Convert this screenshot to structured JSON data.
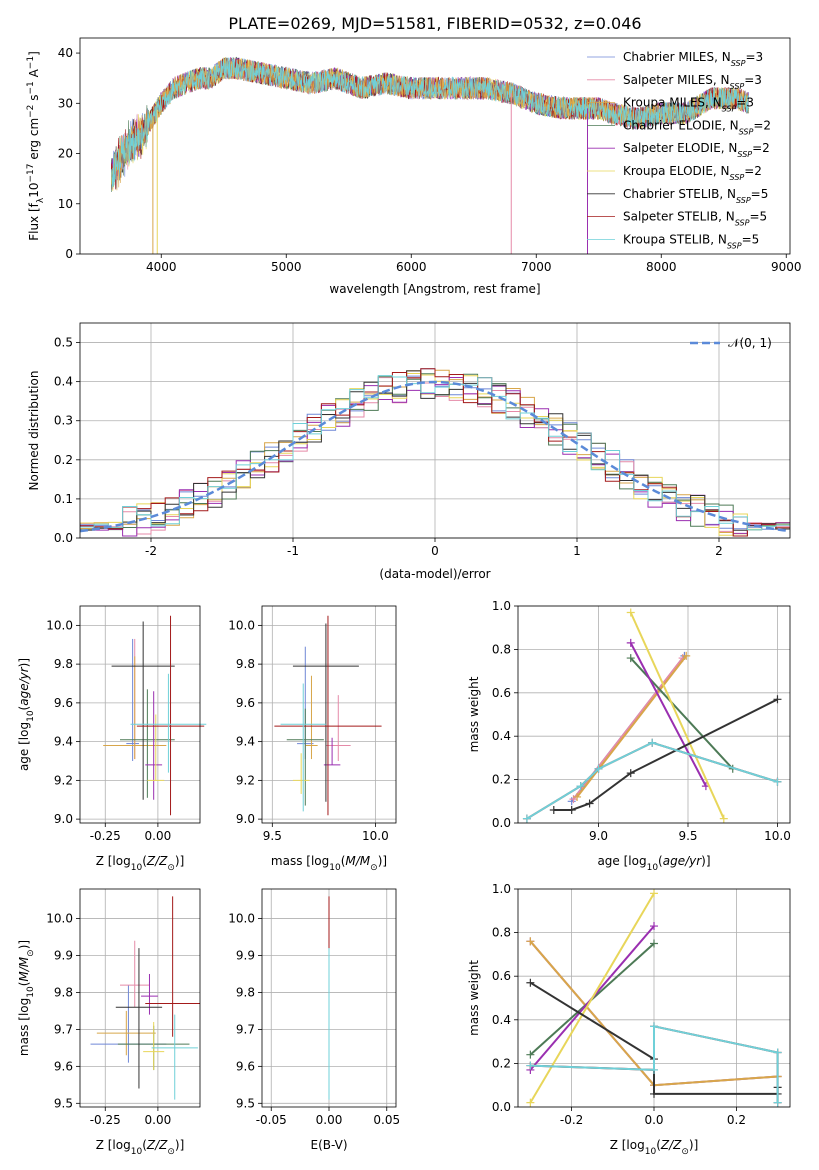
{
  "title": "PLATE=0269, MJD=51581, FIBERID=0532, z=0.046",
  "colors": [
    "#6f87d6",
    "#e58aa8",
    "#d8a64a",
    "#4d7a56",
    "#9a2fb0",
    "#e8d65a",
    "#333333",
    "#a31a1a",
    "#6fd0d8"
  ],
  "chart_data": [
    {
      "id": "spectrum",
      "type": "line",
      "xlabel": "wavelength [Angstrom, rest frame]",
      "ylabel": "Flux [f_λ10^-17 erg cm^-2 s^-1 A^-1]",
      "xlim": [
        3350,
        9030
      ],
      "ylim": [
        0,
        43
      ],
      "xticks": [
        4000,
        5000,
        6000,
        7000,
        8000,
        9000
      ],
      "yticks": [
        0,
        10,
        20,
        30,
        40
      ],
      "grid": false,
      "legend": "top-right",
      "continuum": {
        "x": [
          3600,
          3650,
          3700,
          3750,
          3800,
          3850,
          3900,
          3950,
          4000,
          4100,
          4200,
          4300,
          4400,
          4500,
          4600,
          4800,
          5000,
          5200,
          5400,
          5600,
          5800,
          6000,
          6200,
          6400,
          6600,
          6800,
          7000,
          7200,
          7400,
          7500,
          7600,
          7800,
          8000,
          8200,
          8400,
          8600,
          8700
        ],
        "y": [
          15,
          18,
          20,
          22,
          23,
          24,
          26,
          28,
          30,
          33,
          34,
          35,
          35,
          37,
          37,
          36,
          35,
          34,
          35,
          33,
          34,
          33,
          33,
          33,
          33,
          32,
          30,
          29,
          29,
          29,
          28,
          27,
          28,
          28,
          31,
          31,
          30
        ]
      },
      "dips": [
        {
          "x": 3933,
          "y": 0
        },
        {
          "x": 3968,
          "y": 0
        },
        {
          "x": 6800,
          "y": 0
        },
        {
          "x": 7410,
          "y": 0
        }
      ],
      "series": [
        {
          "label_base": "Chabrier MILES, N",
          "label_sub": "SSP",
          "label_tail": "=3"
        },
        {
          "label_base": "Salpeter MILES, N",
          "label_sub": "SSP",
          "label_tail": "=3"
        },
        {
          "label_base": "Kroupa MILES, N",
          "label_sub": "SSP",
          "label_tail": "=3"
        },
        {
          "label_base": "Chabrier ELODIE, N",
          "label_sub": "SSP",
          "label_tail": "=2"
        },
        {
          "label_base": "Salpeter ELODIE, N",
          "label_sub": "SSP",
          "label_tail": "=2"
        },
        {
          "label_base": "Kroupa ELODIE, N",
          "label_sub": "SSP",
          "label_tail": "=2"
        },
        {
          "label_base": "Chabrier STELIB, N",
          "label_sub": "SSP",
          "label_tail": "=5"
        },
        {
          "label_base": "Salpeter STELIB, N",
          "label_sub": "SSP",
          "label_tail": "=5"
        },
        {
          "label_base": "Kroupa STELIB, N",
          "label_sub": "SSP",
          "label_tail": "=5"
        }
      ]
    },
    {
      "id": "residuals",
      "type": "line",
      "xlabel": "(data-model)/error",
      "ylabel": "Normed distribution",
      "xlim": [
        -2.5,
        2.5
      ],
      "ylim": [
        0,
        0.55
      ],
      "xticks": [
        -2,
        -1,
        0,
        1,
        2
      ],
      "yticks": [
        0.0,
        0.1,
        0.2,
        0.3,
        0.4,
        0.5
      ],
      "grid": true,
      "legend": "top-right",
      "gaussian_label": "𝒩(0, 1)",
      "bin_width": 0.1
    },
    {
      "id": "z_age",
      "type": "scatter",
      "xlabel": "Z [log10(Z/Z⊙)]",
      "ylabel": "age [log10(age/yr)]",
      "xlim": [
        -0.37,
        0.2
      ],
      "ylim": [
        8.98,
        10.1
      ],
      "xticks": [
        -0.25,
        0.0
      ],
      "yticks": [
        9.0,
        9.2,
        9.4,
        9.6,
        9.8,
        10.0
      ],
      "grid": true,
      "points": [
        {
          "x": -0.12,
          "y": 9.39,
          "xerr": 0.03,
          "yerr": 0.54,
          "ylo": 0.09
        },
        {
          "x": -0.11,
          "y": 9.38,
          "xerr": 0.13,
          "yerr": 0.55,
          "ylo": 0.07
        },
        {
          "x": -0.11,
          "y": 9.38,
          "xerr": 0.15,
          "yerr": 0.46,
          "ylo": 0.07
        },
        {
          "x": -0.05,
          "y": 9.41,
          "xerr": 0.13,
          "yerr": 0.26,
          "ylo": 0.3
        },
        {
          "x": -0.02,
          "y": 9.28,
          "xerr": 0.04,
          "yerr": 0.38,
          "ylo": 0.18
        },
        {
          "x": -0.01,
          "y": 9.2,
          "xerr": 0.04,
          "yerr": 0.34,
          "ylo": 0.0
        },
        {
          "x": -0.07,
          "y": 9.79,
          "xerr": 0.15,
          "yerr": 0.23,
          "ylo": 0.69
        },
        {
          "x": 0.06,
          "y": 9.48,
          "xerr": 0.16,
          "yerr": 0.57,
          "ylo": 0.46
        },
        {
          "x": 0.05,
          "y": 9.49,
          "xerr": 0.18,
          "yerr": 0.26,
          "ylo": 0.25
        }
      ]
    },
    {
      "id": "mass_age",
      "type": "scatter",
      "xlabel": "mass [log10(M/M⊙)]",
      "ylabel": "",
      "xlim": [
        9.45,
        10.1
      ],
      "ylim": [
        8.98,
        10.1
      ],
      "xticks": [
        9.5,
        10.0
      ],
      "yticks": [
        9.0,
        9.2,
        9.4,
        9.6,
        9.8,
        10.0
      ],
      "grid": true,
      "points": [
        {
          "x": 9.66,
          "y": 9.39,
          "xerr": 0.04,
          "yerr": 0.5,
          "ylo": 0.08
        },
        {
          "x": 9.82,
          "y": 9.38,
          "xerr": 0.06,
          "yerr": 0.26,
          "ylo": 0.08
        },
        {
          "x": 9.69,
          "y": 9.38,
          "xerr": 0.03,
          "yerr": 0.36,
          "ylo": 0.07
        },
        {
          "x": 9.66,
          "y": 9.41,
          "xerr": 0.09,
          "yerr": 0.16,
          "ylo": 0.34
        },
        {
          "x": 9.79,
          "y": 9.28,
          "xerr": 0.04,
          "yerr": 0.14,
          "ylo": 0.0
        },
        {
          "x": 9.64,
          "y": 9.2,
          "xerr": 0.04,
          "yerr": 0.14,
          "ylo": 0.07
        },
        {
          "x": 9.76,
          "y": 9.79,
          "xerr": 0.16,
          "yerr": 0.22,
          "ylo": 0.7
        },
        {
          "x": 9.77,
          "y": 9.48,
          "xerr": 0.26,
          "yerr": 0.57,
          "ylo": 0.46
        },
        {
          "x": 9.65,
          "y": 9.49,
          "xerr": 0.11,
          "yerr": 0.21,
          "ylo": 0.45
        }
      ]
    },
    {
      "id": "age_weight",
      "type": "line",
      "xlabel": "age [log10(age/yr)]",
      "ylabel": "mass weight",
      "xlim": [
        8.55,
        10.07
      ],
      "ylim": [
        0,
        1.0
      ],
      "xticks": [
        9.0,
        9.5,
        10.0
      ],
      "yticks": [
        0.0,
        0.2,
        0.4,
        0.6,
        0.8,
        1.0
      ],
      "grid": true,
      "series": [
        {
          "x": [
            8.85,
            9.48
          ],
          "y": [
            0.1,
            0.77
          ]
        },
        {
          "x": [
            8.86,
            9.47
          ],
          "y": [
            0.11,
            0.76
          ]
        },
        {
          "x": [
            8.88,
            9.49
          ],
          "y": [
            0.12,
            0.77
          ]
        },
        {
          "x": [
            9.18,
            9.75
          ],
          "y": [
            0.76,
            0.25
          ]
        },
        {
          "x": [
            9.18,
            9.6
          ],
          "y": [
            0.83,
            0.17
          ]
        },
        {
          "x": [
            9.18,
            9.7
          ],
          "y": [
            0.97,
            0.02
          ]
        },
        {
          "x": [
            8.75,
            8.85,
            8.95,
            9.18,
            10.0
          ],
          "y": [
            0.06,
            0.06,
            0.09,
            0.23,
            0.57
          ]
        },
        {
          "x": [
            8.6,
            8.9,
            9.0,
            9.3,
            10.0
          ],
          "y": [
            0.02,
            0.17,
            0.25,
            0.37,
            0.19
          ]
        },
        {
          "x": [
            8.6,
            8.9,
            9.0,
            9.3,
            10.0
          ],
          "y": [
            0.02,
            0.17,
            0.25,
            0.37,
            0.19
          ]
        }
      ]
    },
    {
      "id": "z_mass",
      "type": "scatter",
      "xlabel": "Z [log10(Z/Z⊙)]",
      "ylabel": "mass [log10(M/M⊙)]",
      "xlim": [
        -0.37,
        0.2
      ],
      "ylim": [
        9.49,
        10.08
      ],
      "xticks": [
        -0.25,
        0.0
      ],
      "yticks": [
        9.5,
        9.6,
        9.7,
        9.8,
        9.9,
        10.0
      ],
      "grid": true,
      "points": [
        {
          "x": -0.14,
          "y": 9.66,
          "xerr": 0.18,
          "yerr": 0.16,
          "ylo": 0.05
        },
        {
          "x": -0.11,
          "y": 9.82,
          "xerr": 0.07,
          "yerr": 0.12,
          "ylo": 0.06
        },
        {
          "x": -0.15,
          "y": 9.69,
          "xerr": 0.14,
          "yerr": 0.06,
          "ylo": 0.06
        },
        {
          "x": -0.02,
          "y": 9.66,
          "xerr": 0.17,
          "yerr": 0.05,
          "ylo": 0.07
        },
        {
          "x": -0.04,
          "y": 9.79,
          "xerr": 0.04,
          "yerr": 0.06,
          "ylo": 0.05
        },
        {
          "x": -0.02,
          "y": 9.64,
          "xerr": 0.05,
          "yerr": 0.08,
          "ylo": 0.05
        },
        {
          "x": -0.09,
          "y": 9.76,
          "xerr": 0.11,
          "yerr": 0.16,
          "ylo": 0.22
        },
        {
          "x": 0.07,
          "y": 9.77,
          "xerr": 0.13,
          "yerr": 0.29,
          "ylo": 0.09
        },
        {
          "x": 0.08,
          "y": 9.65,
          "xerr": 0.11,
          "yerr": 0.09,
          "ylo": 0.14
        }
      ]
    },
    {
      "id": "ebv_mass",
      "type": "scatter",
      "xlabel": "E(B-V)",
      "ylabel": "",
      "xlim": [
        -0.058,
        0.058
      ],
      "ylim": [
        9.49,
        10.08
      ],
      "xticks": [
        -0.05,
        0.0,
        0.05
      ],
      "yticks": [
        9.5,
        9.6,
        9.7,
        9.8,
        9.9,
        10.0
      ],
      "grid": true,
      "points": [
        {
          "x": 0,
          "y": 9.66,
          "xerr": 0,
          "yerr": 0.16,
          "ylo": 0.05
        },
        {
          "x": 0,
          "y": 9.82,
          "xerr": 0,
          "yerr": 0.12,
          "ylo": 0.06
        },
        {
          "x": 0,
          "y": 9.69,
          "xerr": 0,
          "yerr": 0.06,
          "ylo": 0.06
        },
        {
          "x": 0,
          "y": 9.66,
          "xerr": 0,
          "yerr": 0.05,
          "ylo": 0.07
        },
        {
          "x": 0,
          "y": 9.79,
          "xerr": 0,
          "yerr": 0.06,
          "ylo": 0.05
        },
        {
          "x": 0,
          "y": 9.64,
          "xerr": 0,
          "yerr": 0.08,
          "ylo": 0.05
        },
        {
          "x": 0,
          "y": 9.76,
          "xerr": 0,
          "yerr": 0.16,
          "ylo": 0.22
        },
        {
          "x": 0,
          "y": 9.77,
          "xerr": 0,
          "yerr": 0.29,
          "ylo": 0.09
        },
        {
          "x": 0,
          "y": 9.65,
          "xerr": 0,
          "yerr": 0.27,
          "ylo": 0.14
        }
      ]
    },
    {
      "id": "z_weight",
      "type": "line",
      "xlabel": "Z [log10(Z/Z⊙)]",
      "ylabel": "mass weight",
      "xlim": [
        -0.33,
        0.33
      ],
      "ylim": [
        0,
        1.0
      ],
      "xticks": [
        -0.2,
        0.0,
        0.2
      ],
      "yticks": [
        0.0,
        0.2,
        0.4,
        0.6,
        0.8,
        1.0
      ],
      "grid": true,
      "series": [
        {
          "x": [
            -0.3,
            0.0,
            0.3
          ],
          "y": [
            0.76,
            0.1,
            0.14
          ]
        },
        {
          "x": [
            -0.3,
            0.0,
            0.3
          ],
          "y": [
            0.76,
            0.1,
            0.14
          ]
        },
        {
          "x": [
            -0.3,
            0.0,
            0.3
          ],
          "y": [
            0.76,
            0.1,
            0.14
          ]
        },
        {
          "x": [
            -0.3,
            0.0
          ],
          "y": [
            0.24,
            0.75
          ]
        },
        {
          "x": [
            -0.3,
            0.0
          ],
          "y": [
            0.17,
            0.83
          ]
        },
        {
          "x": [
            -0.3,
            0.0
          ],
          "y": [
            0.02,
            0.98
          ]
        },
        {
          "x": [
            -0.3,
            0.0,
            0.0,
            0.3,
            0.3
          ],
          "y": [
            0.57,
            0.22,
            0.06,
            0.06,
            0.09
          ]
        },
        {
          "x": [
            -0.3,
            0.0,
            0.0,
            0.3,
            0.3
          ],
          "y": [
            0.19,
            0.17,
            0.37,
            0.25,
            0.02
          ]
        },
        {
          "x": [
            -0.3,
            0.0,
            0.0,
            0.3,
            0.3
          ],
          "y": [
            0.19,
            0.17,
            0.37,
            0.25,
            0.02
          ]
        }
      ]
    }
  ]
}
